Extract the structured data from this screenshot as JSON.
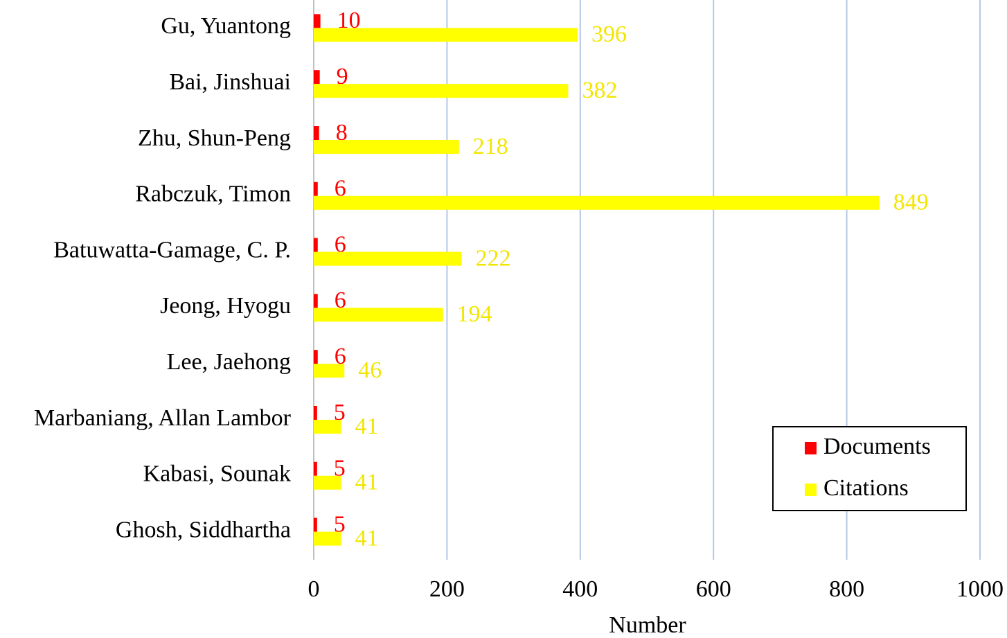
{
  "chart_data": {
    "type": "bar",
    "orientation": "horizontal",
    "xlabel": "Number",
    "categories": [
      "Gu, Yuantong",
      "Bai, Jinshuai",
      "Zhu, Shun-Peng",
      "Rabczuk, Timon",
      "Batuwatta-Gamage, C. P.",
      "Jeong, Hyogu",
      "Lee, Jaehong",
      "Marbaniang, Allan Lambor",
      "Kabasi, Sounak",
      "Ghosh, Siddhartha"
    ],
    "series": [
      {
        "name": "Documents",
        "color": "#ff0000",
        "values": [
          10,
          9,
          8,
          6,
          6,
          6,
          6,
          5,
          5,
          5
        ]
      },
      {
        "name": "Citations",
        "color": "#ffff00",
        "values": [
          396,
          382,
          218,
          849,
          222,
          194,
          46,
          41,
          41,
          41
        ]
      }
    ],
    "xlim": [
      0,
      1000
    ],
    "xticks": [
      0,
      200,
      400,
      600,
      800,
      1000
    ],
    "grid": true,
    "legend": "lower right"
  }
}
